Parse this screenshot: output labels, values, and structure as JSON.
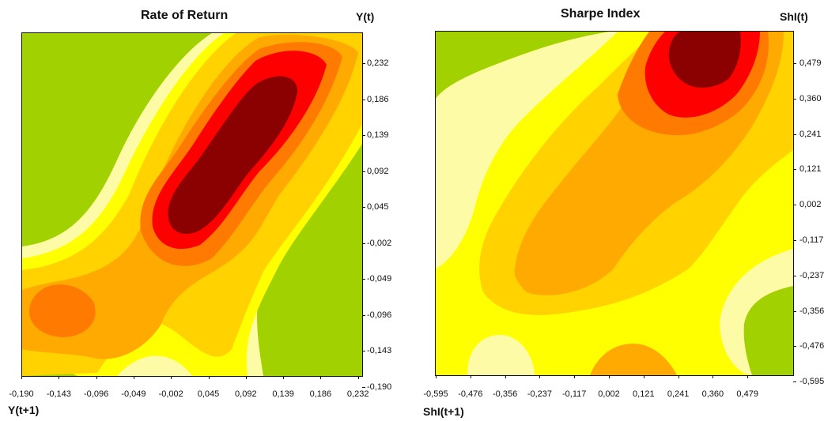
{
  "chart_data": [
    {
      "type": "heatmap",
      "title": "Rate of Return",
      "ylabel": "Y(t)",
      "xlabel": "Y(t+1)",
      "x_ticks": [
        "-0,190",
        "-0,143",
        "-0,096",
        "-0,049",
        "-0,002",
        "0,045",
        "0,092",
        "0,139",
        "0,186",
        "0,232"
      ],
      "y_ticks": [
        "0,232",
        "0,186",
        "0,139",
        "0,092",
        "0,045",
        "-0,002",
        "-0,049",
        "-0,096",
        "-0,143",
        "-0,190"
      ],
      "x_range": [
        -0.19,
        0.265
      ],
      "y_range": [
        -0.19,
        0.268
      ],
      "color_levels": [
        "#a2d100",
        "#fefba6",
        "#ffff00",
        "#ffd200",
        "#ffaa00",
        "#ff7a00",
        "#ff0000",
        "#8b0000"
      ],
      "grid": false
    },
    {
      "type": "heatmap",
      "title": "Sharpe Index",
      "ylabel": "ShI(t)",
      "xlabel": "ShI(t+1)",
      "x_ticks": [
        "-0,595",
        "-0,476",
        "-0,356",
        "-0,237",
        "-0,117",
        "0,002",
        "0,121",
        "0,241",
        "0,360",
        "0,479"
      ],
      "y_ticks": [
        "0,479",
        "0,360",
        "0,241",
        "0,121",
        "0,002",
        "-0,117",
        "-0,237",
        "-0,356",
        "-0,476",
        "-0,595"
      ],
      "x_range": [
        -0.595,
        0.58
      ],
      "y_range": [
        -0.595,
        0.59
      ],
      "color_levels": [
        "#a2d100",
        "#fefba6",
        "#ffff00",
        "#ffd200",
        "#ffaa00",
        "#ff7a00",
        "#ff0000",
        "#8b0000"
      ],
      "grid": false
    }
  ]
}
